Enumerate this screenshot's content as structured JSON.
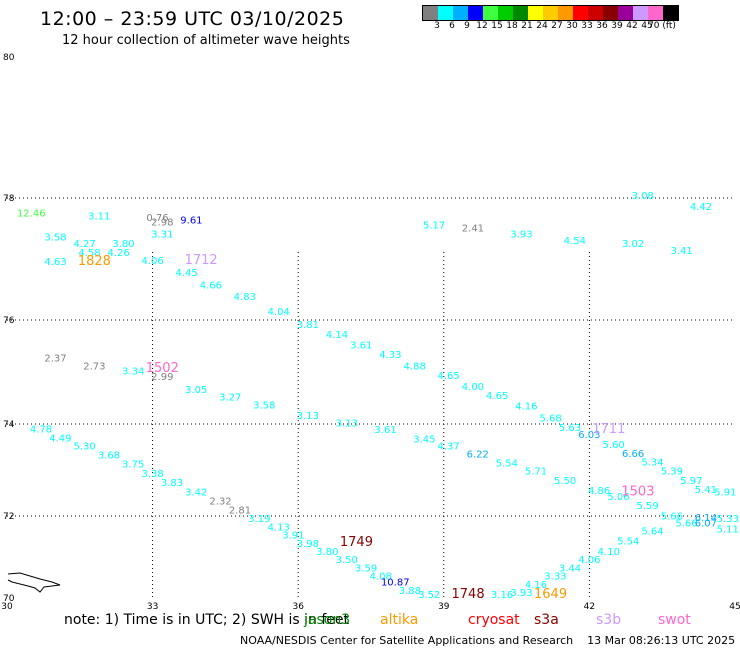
{
  "title": "12:00 – 23:59 UTC 03/10/2025",
  "subtitle": "12 hour collection of altimeter wave heights",
  "colorbar": {
    "colors": [
      "#808080",
      "#00ffff",
      "#00b0ff",
      "#0000ff",
      "#40ff40",
      "#00cc00",
      "#008800",
      "#ffff00",
      "#ffcc00",
      "#ff9900",
      "#ff0000",
      "#cc0000",
      "#880000",
      "#990099",
      "#cc99ff",
      "#ff66cc",
      "#000000"
    ],
    "labels": [
      "3",
      "6",
      "9",
      "12",
      "15",
      "18",
      "21",
      "24",
      "27",
      "30",
      "33",
      "36",
      "39",
      "42",
      "45",
      "70 (ft)"
    ]
  },
  "map": {
    "lat_labels": [
      "80",
      "78",
      "76",
      "74",
      "72",
      "70"
    ],
    "lon_labels": [
      "30",
      "33",
      "36",
      "39",
      "42",
      "45"
    ],
    "grid": "dotted"
  },
  "points": [
    {
      "lon": 30.5,
      "lat": 77.7,
      "text": "12.46",
      "color": "#40ff40"
    },
    {
      "lon": 31.0,
      "lat": 77.3,
      "text": "3.58",
      "color": "#00ffff"
    },
    {
      "lon": 31.0,
      "lat": 76.9,
      "text": "4.63",
      "color": "#00ffff"
    },
    {
      "lon": 31.6,
      "lat": 77.2,
      "text": "4.27",
      "color": "#00ffff"
    },
    {
      "lon": 31.7,
      "lat": 77.05,
      "text": "4.58",
      "color": "#00ffff"
    },
    {
      "lon": 31.9,
      "lat": 77.65,
      "text": "3.11",
      "color": "#00ffff"
    },
    {
      "lon": 32.4,
      "lat": 77.2,
      "text": "3.80",
      "color": "#00ffff"
    },
    {
      "lon": 32.3,
      "lat": 77.05,
      "text": "4.26",
      "color": "#00ffff"
    },
    {
      "lon": 33.1,
      "lat": 77.62,
      "text": "0.76",
      "color": "#808080"
    },
    {
      "lon": 33.2,
      "lat": 77.35,
      "text": "3.31",
      "color": "#00ffff"
    },
    {
      "lon": 33.0,
      "lat": 76.92,
      "text": "4.06",
      "color": "#00ffff"
    },
    {
      "lon": 33.7,
      "lat": 76.72,
      "text": "4.45",
      "color": "#00ffff"
    },
    {
      "lon": 34.2,
      "lat": 76.52,
      "text": "4.66",
      "color": "#00ffff"
    },
    {
      "lon": 34.9,
      "lat": 76.33,
      "text": "4.83",
      "color": "#00ffff"
    },
    {
      "lon": 35.6,
      "lat": 76.08,
      "text": "4.04",
      "color": "#00ffff"
    },
    {
      "lon": 36.2,
      "lat": 75.85,
      "text": "3.81",
      "color": "#00ffff"
    },
    {
      "lon": 36.8,
      "lat": 75.65,
      "text": "4.14",
      "color": "#00ffff"
    },
    {
      "lon": 37.3,
      "lat": 75.45,
      "text": "3.61",
      "color": "#00ffff"
    },
    {
      "lon": 37.9,
      "lat": 75.27,
      "text": "4.33",
      "color": "#00ffff"
    },
    {
      "lon": 38.4,
      "lat": 75.05,
      "text": "4.88",
      "color": "#00ffff"
    },
    {
      "lon": 39.1,
      "lat": 74.87,
      "text": "4.65",
      "color": "#00ffff"
    },
    {
      "lon": 39.6,
      "lat": 74.65,
      "text": "4.00",
      "color": "#00ffff"
    },
    {
      "lon": 40.1,
      "lat": 74.48,
      "text": "4.65",
      "color": "#00ffff"
    },
    {
      "lon": 40.7,
      "lat": 74.28,
      "text": "4.16",
      "color": "#00ffff"
    },
    {
      "lon": 41.2,
      "lat": 74.05,
      "text": "5.68",
      "color": "#00ffff"
    },
    {
      "lon": 41.6,
      "lat": 73.85,
      "text": "5.63",
      "color": "#00ffff"
    },
    {
      "lon": 42.0,
      "lat": 73.7,
      "text": "6.03",
      "color": "#00b0ff"
    },
    {
      "lon": 42.5,
      "lat": 73.48,
      "text": "5.60",
      "color": "#00ffff"
    },
    {
      "lon": 42.9,
      "lat": 73.28,
      "text": "6.66",
      "color": "#00b0ff"
    },
    {
      "lon": 43.3,
      "lat": 73.1,
      "text": "5.34",
      "color": "#00ffff"
    },
    {
      "lon": 43.7,
      "lat": 72.9,
      "text": "5.39",
      "color": "#00ffff"
    },
    {
      "lon": 44.1,
      "lat": 72.7,
      "text": "5.97",
      "color": "#00ffff"
    },
    {
      "lon": 44.4,
      "lat": 72.5,
      "text": "5.41",
      "color": "#00ffff"
    },
    {
      "lon": 44.8,
      "lat": 72.45,
      "text": "5.91",
      "color": "#00ffff"
    },
    {
      "lon": 33.2,
      "lat": 77.55,
      "text": "2.98",
      "color": "#808080"
    },
    {
      "lon": 33.8,
      "lat": 77.58,
      "text": "9.61",
      "color": "#0000ff"
    },
    {
      "lon": 31.0,
      "lat": 75.2,
      "text": "2.37",
      "color": "#808080"
    },
    {
      "lon": 31.8,
      "lat": 75.05,
      "text": "2.73",
      "color": "#808080"
    },
    {
      "lon": 32.6,
      "lat": 74.95,
      "text": "3.34",
      "color": "#00ffff"
    },
    {
      "lon": 33.2,
      "lat": 74.85,
      "text": "2.99",
      "color": "#808080"
    },
    {
      "lon": 33.9,
      "lat": 74.6,
      "text": "3.05",
      "color": "#00ffff"
    },
    {
      "lon": 34.6,
      "lat": 74.45,
      "text": "3.27",
      "color": "#00ffff"
    },
    {
      "lon": 35.3,
      "lat": 74.3,
      "text": "3.58",
      "color": "#00ffff"
    },
    {
      "lon": 36.2,
      "lat": 74.1,
      "text": "3.13",
      "color": "#00ffff"
    },
    {
      "lon": 37.0,
      "lat": 73.95,
      "text": "3.13",
      "color": "#00ffff"
    },
    {
      "lon": 37.8,
      "lat": 73.8,
      "text": "3.61",
      "color": "#00ffff"
    },
    {
      "lon": 38.6,
      "lat": 73.6,
      "text": "3.45",
      "color": "#00ffff"
    },
    {
      "lon": 39.1,
      "lat": 73.45,
      "text": "4.37",
      "color": "#00ffff"
    },
    {
      "lon": 39.7,
      "lat": 73.27,
      "text": "6.22",
      "color": "#00b0ff"
    },
    {
      "lon": 40.3,
      "lat": 73.08,
      "text": "5.54",
      "color": "#00ffff"
    },
    {
      "lon": 40.9,
      "lat": 72.9,
      "text": "5.71",
      "color": "#00ffff"
    },
    {
      "lon": 41.5,
      "lat": 72.7,
      "text": "5.50",
      "color": "#00ffff"
    },
    {
      "lon": 42.2,
      "lat": 72.48,
      "text": "4.86",
      "color": "#00ffff"
    },
    {
      "lon": 42.6,
      "lat": 72.35,
      "text": "5.06",
      "color": "#00ffff"
    },
    {
      "lon": 43.2,
      "lat": 72.15,
      "text": "5.59",
      "color": "#00ffff"
    },
    {
      "lon": 43.7,
      "lat": 71.92,
      "text": "5.66",
      "color": "#00ffff"
    },
    {
      "lon": 44.0,
      "lat": 71.75,
      "text": "5.66",
      "color": "#00ffff"
    },
    {
      "lon": 44.4,
      "lat": 71.75,
      "text": "6.07",
      "color": "#00b0ff"
    },
    {
      "lon": 44.4,
      "lat": 71.88,
      "text": "6.14",
      "color": "#00b0ff"
    },
    {
      "lon": 44.85,
      "lat": 71.85,
      "text": "5.33",
      "color": "#00ffff"
    },
    {
      "lon": 44.85,
      "lat": 71.6,
      "text": "5.11",
      "color": "#00ffff"
    },
    {
      "lon": 30.7,
      "lat": 73.82,
      "text": "4.78",
      "color": "#00ffff"
    },
    {
      "lon": 31.1,
      "lat": 73.62,
      "text": "4.49",
      "color": "#00ffff"
    },
    {
      "lon": 31.6,
      "lat": 73.45,
      "text": "5.30",
      "color": "#00ffff"
    },
    {
      "lon": 32.1,
      "lat": 73.25,
      "text": "3.68",
      "color": "#00ffff"
    },
    {
      "lon": 32.6,
      "lat": 73.05,
      "text": "3.75",
      "color": "#00ffff"
    },
    {
      "lon": 33.0,
      "lat": 72.85,
      "text": "3.38",
      "color": "#00ffff"
    },
    {
      "lon": 33.4,
      "lat": 72.65,
      "text": "3.83",
      "color": "#00ffff"
    },
    {
      "lon": 33.9,
      "lat": 72.45,
      "text": "3.42",
      "color": "#00ffff"
    },
    {
      "lon": 34.4,
      "lat": 72.25,
      "text": "2.32",
      "color": "#808080"
    },
    {
      "lon": 34.8,
      "lat": 72.05,
      "text": "2.81",
      "color": "#808080"
    },
    {
      "lon": 35.2,
      "lat": 71.85,
      "text": "3.19",
      "color": "#00ffff"
    },
    {
      "lon": 35.6,
      "lat": 71.65,
      "text": "4.13",
      "color": "#00ffff"
    },
    {
      "lon": 35.9,
      "lat": 71.45,
      "text": "3.91",
      "color": "#00ffff"
    },
    {
      "lon": 36.2,
      "lat": 71.25,
      "text": "3.98",
      "color": "#00ffff"
    },
    {
      "lon": 36.6,
      "lat": 71.05,
      "text": "3.80",
      "color": "#00ffff"
    },
    {
      "lon": 37.0,
      "lat": 70.85,
      "text": "3.50",
      "color": "#00ffff"
    },
    {
      "lon": 37.4,
      "lat": 70.65,
      "text": "3.59",
      "color": "#00ffff"
    },
    {
      "lon": 37.7,
      "lat": 70.45,
      "text": "4.08",
      "color": "#00ffff"
    },
    {
      "lon": 38.0,
      "lat": 70.3,
      "text": "10.87",
      "color": "#0000ff"
    },
    {
      "lon": 38.3,
      "lat": 70.1,
      "text": "3.88",
      "color": "#00ffff"
    },
    {
      "lon": 38.7,
      "lat": 69.95,
      "text": "3.52",
      "color": "#00ffff"
    },
    {
      "lon": 40.2,
      "lat": 69.88,
      "text": "3.16",
      "color": "#00ffff"
    },
    {
      "lon": 40.6,
      "lat": 70.05,
      "text": "3.93",
      "color": "#00ffff"
    },
    {
      "lon": 40.9,
      "lat": 70.25,
      "text": "4.16",
      "color": "#00ffff"
    },
    {
      "lon": 41.3,
      "lat": 70.45,
      "text": "3.33",
      "color": "#00ffff"
    },
    {
      "lon": 41.6,
      "lat": 70.65,
      "text": "3.44",
      "color": "#00ffff"
    },
    {
      "lon": 42.0,
      "lat": 70.85,
      "text": "4.06",
      "color": "#00ffff"
    },
    {
      "lon": 42.4,
      "lat": 71.05,
      "text": "4.10",
      "color": "#00ffff"
    },
    {
      "lon": 42.8,
      "lat": 71.3,
      "text": "5.54",
      "color": "#00ffff"
    },
    {
      "lon": 43.3,
      "lat": 71.55,
      "text": "5.64",
      "color": "#00ffff"
    },
    {
      "lon": 38.8,
      "lat": 77.5,
      "text": "5.17",
      "color": "#00ffff"
    },
    {
      "lon": 39.6,
      "lat": 77.45,
      "text": "2.41",
      "color": "#808080"
    },
    {
      "lon": 40.6,
      "lat": 77.35,
      "text": "3.93",
      "color": "#00ffff"
    },
    {
      "lon": 41.7,
      "lat": 77.25,
      "text": "4.54",
      "color": "#00ffff"
    },
    {
      "lon": 42.9,
      "lat": 77.2,
      "text": "3.02",
      "color": "#00ffff"
    },
    {
      "lon": 43.1,
      "lat": 77.98,
      "text": "3.08",
      "color": "#00ffff"
    },
    {
      "lon": 43.9,
      "lat": 77.08,
      "text": "3.41",
      "color": "#00ffff"
    },
    {
      "lon": 44.3,
      "lat": 77.8,
      "text": "4.42",
      "color": "#00ffff"
    }
  ],
  "pass_times": [
    {
      "lon": 31.8,
      "lat": 76.9,
      "text": "1828",
      "color": "#ff9900"
    },
    {
      "lon": 34.0,
      "lat": 76.92,
      "text": "1712",
      "color": "#cc99ff"
    },
    {
      "lon": 33.2,
      "lat": 75.0,
      "text": "1502",
      "color": "#ff66cc"
    },
    {
      "lon": 37.2,
      "lat": 71.27,
      "text": "1749",
      "color": "#880000"
    },
    {
      "lon": 39.5,
      "lat": 69.92,
      "text": "1748",
      "color": "#880000"
    },
    {
      "lon": 41.2,
      "lat": 69.86,
      "text": "1649",
      "color": "#ff9900"
    },
    {
      "lon": 42.4,
      "lat": 73.8,
      "text": "1711",
      "color": "#cc99ff"
    },
    {
      "lon": 43.0,
      "lat": 72.45,
      "text": "1503",
      "color": "#ff66cc"
    }
  ],
  "note": "note:  1) Time is in UTC; 2) SWH is in feet",
  "satellites": [
    {
      "name": "jason3",
      "color": "#008800"
    },
    {
      "name": "altika",
      "color": "#ff9900"
    },
    {
      "name": "cryosat",
      "color": "#ff0000"
    },
    {
      "name": "s3a",
      "color": "#880000"
    },
    {
      "name": "s3b",
      "color": "#cc99ff"
    },
    {
      "name": "swot",
      "color": "#ff66cc"
    }
  ],
  "footer": "NOAA/NESDIS Center for Satellite Applications and Research    13 Mar 08:26:13 UTC 2025"
}
